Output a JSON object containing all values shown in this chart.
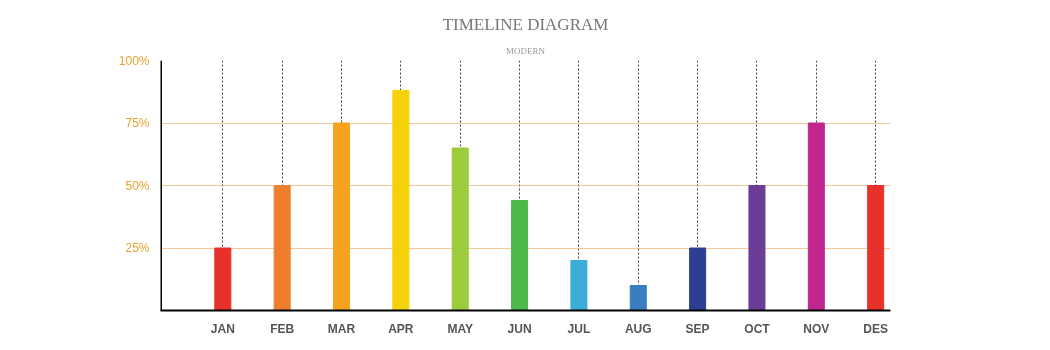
{
  "chart_data": {
    "type": "bar",
    "title": "TIMELINE DIAGRAM",
    "subtitle": "MODERN",
    "categories": [
      "JAN",
      "FEB",
      "MAR",
      "APR",
      "MAY",
      "JUN",
      "JUL",
      "AUG",
      "SEP",
      "OCT",
      "NOV",
      "DES"
    ],
    "values": [
      25,
      50,
      75,
      88,
      65,
      44,
      20,
      10,
      25,
      50,
      75,
      50
    ],
    "colors": [
      "#e8312a",
      "#ef7d2e",
      "#f6a21e",
      "#f5d10a",
      "#9ccb3b",
      "#4cb848",
      "#3aaed8",
      "#3a7dc1",
      "#2e3f93",
      "#6b3d97",
      "#c1268f",
      "#e8312a"
    ],
    "ylim": [
      0,
      100
    ],
    "yticks": [
      {
        "value": 25,
        "label": "25%"
      },
      {
        "value": 50,
        "label": "50%"
      },
      {
        "value": 75,
        "label": "75%"
      },
      {
        "value": 100,
        "label": "100%"
      }
    ],
    "grid": true
  }
}
